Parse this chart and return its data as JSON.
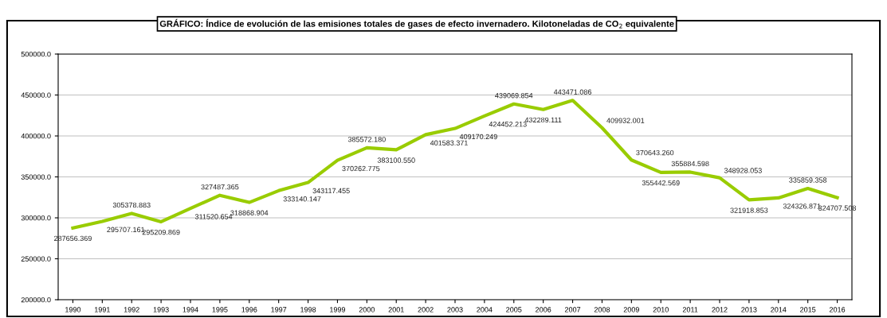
{
  "chart_data": {
    "type": "line",
    "title": "GRÁFICO: Índice de evolución de las emisiones totales de gases de efecto invernadero. Kilotoneladas de CO$_{2}$ equivalente",
    "categories": [
      "1990",
      "1991",
      "1992",
      "1993",
      "1994",
      "1995",
      "1996",
      "1997",
      "1998",
      "1999",
      "2000",
      "2001",
      "2002",
      "2003",
      "2004",
      "2005",
      "2006",
      "2007",
      "2008",
      "2009",
      "2010",
      "2011",
      "2012",
      "2013",
      "2014",
      "2015",
      "2016"
    ],
    "series": [
      {
        "color": "#99cc00",
        "values": [
          287656.369,
          295707.161,
          305378.883,
          295209.869,
          311520.654,
          327487.365,
          318868.904,
          333140.147,
          343117.455,
          370262.775,
          385572.18,
          383100.55,
          401583.371,
          409170.249,
          424452.213,
          439069.854,
          432289.111,
          443471.086,
          409932.001,
          370643.26,
          355442.569,
          355884.598,
          348928.053,
          321918.853,
          324326.871,
          335859.358,
          324707.508
        ],
        "value_labels": [
          "287656.369",
          "295707.161",
          "305378.883",
          "295209.869",
          "311520.654",
          "327487.365",
          "318868.904",
          "333140.147",
          "343117.455",
          "370262.775",
          "385572.180",
          "383100.550",
          "401583.371",
          "409170.249",
          "424452.213",
          "439069.854",
          "432289.111",
          "443471.086",
          "409932.001",
          "370643.260",
          "355442.569",
          "355884.598",
          "348928.053",
          "321918.853",
          "324326.871",
          "335859.358",
          "324707.508"
        ]
      }
    ],
    "ylim": [
      200000,
      500000
    ],
    "yticks": [
      {
        "value": 200000,
        "label": "200000.0"
      },
      {
        "value": 250000,
        "label": "250000.0"
      },
      {
        "value": 300000,
        "label": "300000.0"
      },
      {
        "value": 350000,
        "label": "350000.0"
      },
      {
        "value": 400000,
        "label": "400000.0"
      },
      {
        "value": 450000,
        "label": "450000.0"
      },
      {
        "value": 500000,
        "label": "500000.0"
      }
    ],
    "grid": "y",
    "marker": "none",
    "line_style": "solid"
  }
}
